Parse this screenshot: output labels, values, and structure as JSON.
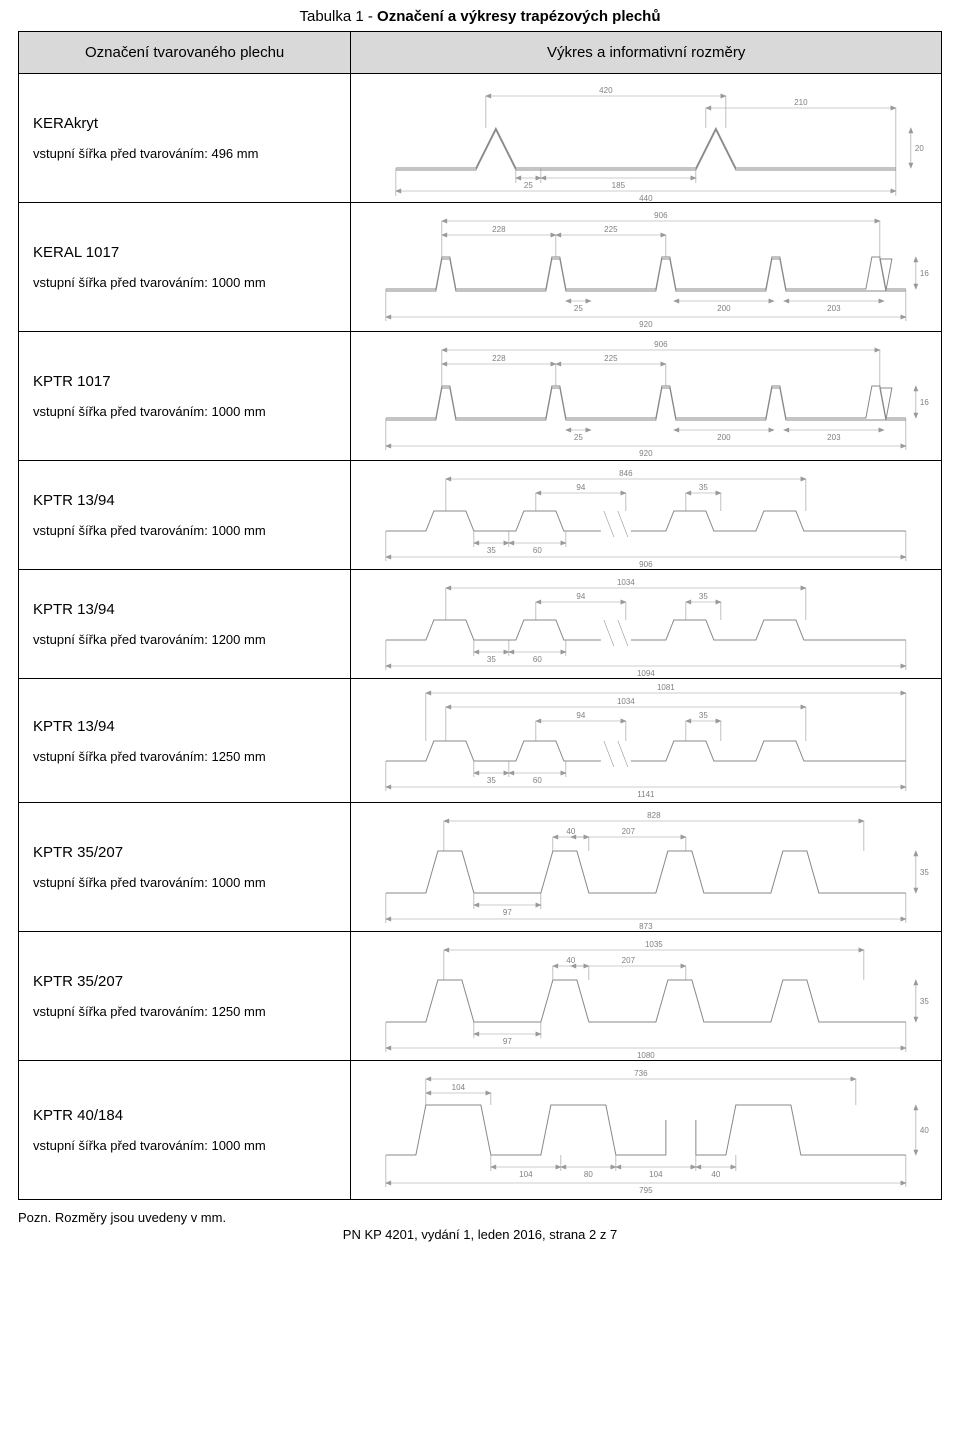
{
  "title": {
    "prefix": "Tabulka 1 - ",
    "bold": "Označení a výkresy trapézových plechů"
  },
  "header": {
    "col1": "Označení tvarovaného plechu",
    "col2": "Výkres a informativní rozměry"
  },
  "rows": [
    {
      "name": "KERAkryt",
      "sub": "vstupní šířka před tvarováním: 496 mm",
      "drawing": {
        "kind": "kerakryt",
        "top_w": "420",
        "right_w": "210",
        "h": "20",
        "inner_a": "25",
        "inner_b": "185",
        "bottom_w": "440"
      }
    },
    {
      "name": "KERAL 1017",
      "sub": "vstupní šířka před tvarováním: 1000 mm",
      "drawing": {
        "kind": "keral",
        "top_w": "906",
        "seg_a": "228",
        "seg_b": "225",
        "h": "16",
        "inner_a": "25",
        "inner_b": "200",
        "inner_c": "203",
        "bottom_w": "920"
      }
    },
    {
      "name": "KPTR 1017",
      "sub": "vstupní šířka před tvarováním: 1000 mm",
      "drawing": {
        "kind": "keral",
        "top_w": "906",
        "seg_a": "228",
        "seg_b": "225",
        "h": "16",
        "inner_a": "25",
        "inner_b": "200",
        "inner_c": "203",
        "bottom_w": "920"
      }
    },
    {
      "name": "KPTR 13/94",
      "sub": "vstupní šířka před tvarováním: 1000 mm",
      "drawing": {
        "kind": "trap13",
        "top_w": "846",
        "mid_a": "94",
        "mid_b": "35",
        "b_a": "35",
        "b_b": "60",
        "bottom_w": "906"
      }
    },
    {
      "name": "KPTR 13/94",
      "sub": "vstupní šířka před tvarováním: 1200 mm",
      "drawing": {
        "kind": "trap13",
        "top_w": "1034",
        "mid_a": "94",
        "mid_b": "35",
        "b_a": "35",
        "b_b": "60",
        "bottom_w": "1094"
      }
    },
    {
      "name": "KPTR 13/94",
      "sub": "vstupní šířka před tvarováním: 1250 mm",
      "drawing": {
        "kind": "trap13b",
        "outer_w": "1081",
        "top_w": "1034",
        "mid_a": "94",
        "mid_b": "35",
        "b_a": "35",
        "b_b": "60",
        "bottom_w": "1141"
      }
    },
    {
      "name": "KPTR 35/207",
      "sub": "vstupní šířka před tvarováním: 1000 mm",
      "drawing": {
        "kind": "trap35",
        "top_w": "828",
        "top_a": "40",
        "top_b": "207",
        "h": "35",
        "b_a": "97",
        "bottom_w": "873"
      }
    },
    {
      "name": "KPTR 35/207",
      "sub": "vstupní šířka před tvarováním: 1250 mm",
      "drawing": {
        "kind": "trap35",
        "top_w": "1035",
        "top_a": "40",
        "top_b": "207",
        "h": "35",
        "b_a": "97",
        "bottom_w": "1080"
      }
    },
    {
      "name": "KPTR 40/184",
      "sub": "vstupní šířka před tvarováním: 1000 mm",
      "drawing": {
        "kind": "trap40",
        "top_w": "736",
        "top_a": "104",
        "h": "40",
        "b_a": "104",
        "b_b": "80",
        "b_c": "104",
        "b_d": "40",
        "bottom_w": "795"
      }
    }
  ],
  "footer_note": "Pozn. Rozměry jsou uvedeny v mm.",
  "footer_center": "PN KP 4201, vydání 1, leden 2016, strana 2 z 7"
}
